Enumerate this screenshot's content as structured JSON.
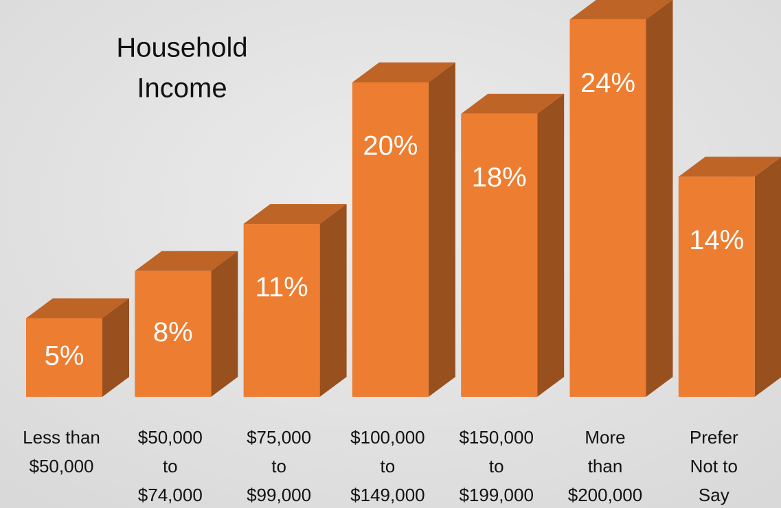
{
  "chart_data": {
    "type": "bar3d",
    "title": [
      "Household",
      "Income"
    ],
    "categories": [
      [
        "Less than",
        "$50,000"
      ],
      [
        "$50,000",
        "to",
        "$74,000"
      ],
      [
        "$75,000",
        "to",
        "$99,000"
      ],
      [
        "$100,000",
        "to",
        "$149,000"
      ],
      [
        "$150,000",
        "to",
        "$199,000"
      ],
      [
        "More",
        "than",
        "$200,000"
      ],
      [
        "Prefer",
        "Not to",
        "Say"
      ]
    ],
    "values": [
      5,
      8,
      11,
      20,
      18,
      24,
      14
    ],
    "value_labels": [
      "5%",
      "8%",
      "11%",
      "20%",
      "18%",
      "24%",
      "14%"
    ],
    "color": "#ED7D31"
  }
}
